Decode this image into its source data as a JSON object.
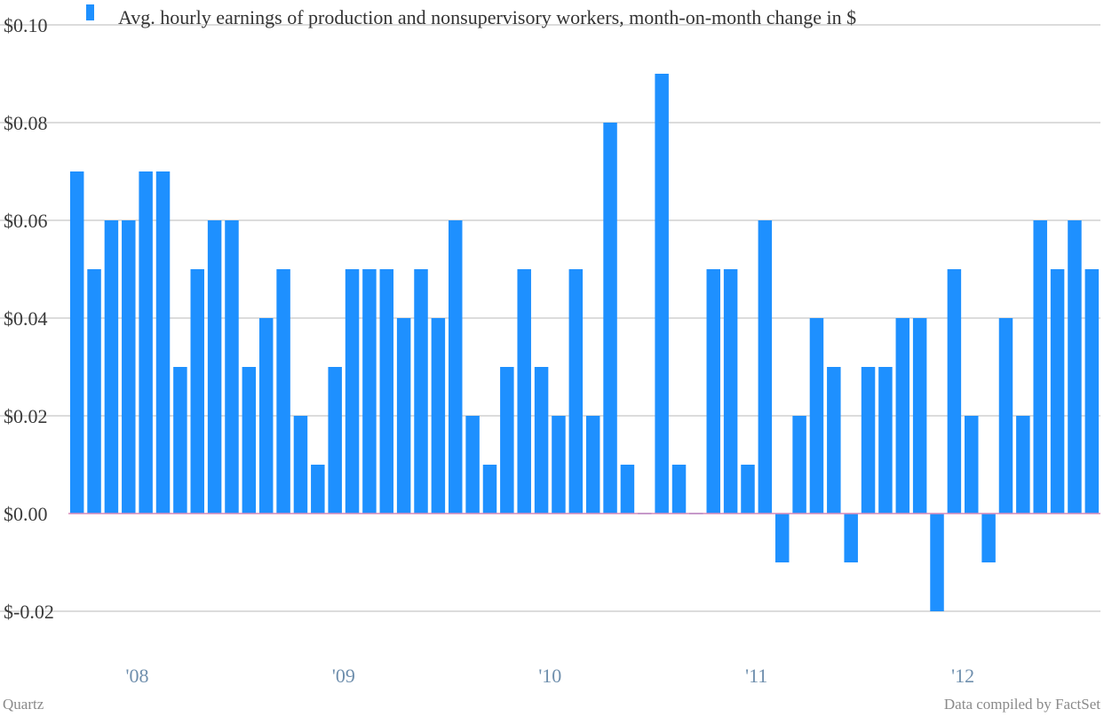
{
  "chart_data": {
    "type": "bar",
    "title": "",
    "xlabel": "",
    "ylabel": "",
    "ylim": [
      -0.02,
      0.1
    ],
    "y_ticks": [
      0.1,
      0.08,
      0.06,
      0.04,
      0.02,
      0.0,
      -0.02
    ],
    "y_tick_labels": [
      "$0.10",
      "$0.08",
      "$0.06",
      "$0.04",
      "$0.02",
      "$0.00",
      "$-0.02"
    ],
    "x_tick_labels": [
      "'08",
      "'09",
      "'10",
      "'11",
      "'12"
    ],
    "x_tick_bar_index": [
      3.5,
      15.5,
      27.5,
      39.5,
      51.5
    ],
    "grid": true,
    "legend_position": "top-left",
    "colors": {
      "bar": "#1e90ff",
      "zero_line": "#d98ab8",
      "grid": "#b8b8b8",
      "x_tick": "#6f8fad"
    },
    "series": [
      {
        "name": "Avg. hourly earnings of production and nonsupervisory workers, month-on-month change in $",
        "values": [
          0.07,
          0.05,
          0.06,
          0.06,
          0.07,
          0.07,
          0.03,
          0.05,
          0.06,
          0.06,
          0.03,
          0.04,
          0.05,
          0.02,
          0.01,
          0.03,
          0.05,
          0.05,
          0.05,
          0.04,
          0.05,
          0.04,
          0.06,
          0.02,
          0.01,
          0.03,
          0.05,
          0.03,
          0.02,
          0.05,
          0.02,
          0.08,
          0.01,
          0.0,
          0.09,
          0.01,
          0.0,
          0.05,
          0.05,
          0.01,
          0.06,
          -0.01,
          0.02,
          0.04,
          0.03,
          -0.01,
          0.03,
          0.03,
          0.04,
          0.04,
          -0.02,
          0.05,
          0.02,
          -0.01,
          0.04,
          0.02,
          0.06,
          0.05,
          0.06,
          0.05
        ]
      }
    ]
  },
  "footer": {
    "source_left": "Quartz",
    "source_right": "Data compiled by FactSet"
  }
}
